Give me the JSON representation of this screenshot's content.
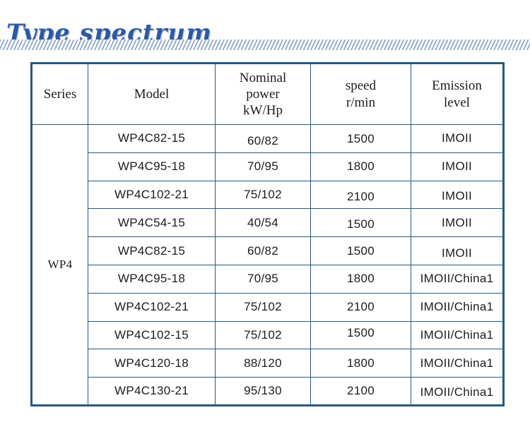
{
  "page": {
    "title": "Type spectrum"
  },
  "colors": {
    "title_blue": "#2b5aa5",
    "border_navy": "#27597f",
    "stripe_blue": "#8aa4c8"
  },
  "table": {
    "headers": {
      "series": "Series",
      "model": "Model",
      "power": "Nominal\npower\nkW/Hp",
      "speed": "speed\nr/min",
      "emission": "Emission\nlevel"
    },
    "series_label": "WP4",
    "rows": [
      {
        "model": "WP4C82-15",
        "power": "60/82",
        "speed": "1500",
        "emission": "IMOII"
      },
      {
        "model": "WP4C95-18",
        "power": "70/95",
        "speed": "1800",
        "emission": "IMOII"
      },
      {
        "model": "WP4C102-21",
        "power": "75/102",
        "speed": "2100",
        "emission": "IMOII"
      },
      {
        "model": "WP4C54-15",
        "power": "40/54",
        "speed": "1500",
        "emission": "IMOII"
      },
      {
        "model": "WP4C82-15",
        "power": "60/82",
        "speed": "1500",
        "emission": "IMOII"
      },
      {
        "model": "WP4C95-18",
        "power": "70/95",
        "speed": "1800",
        "emission": "IMOII/China1"
      },
      {
        "model": "WP4C102-21",
        "power": "75/102",
        "speed": "2100",
        "emission": "IMOII/China1"
      },
      {
        "model": "WP4C102-15",
        "power": "75/102",
        "speed": "1500",
        "emission": "IMOII/China1"
      },
      {
        "model": "WP4C120-18",
        "power": "88/120",
        "speed": "1800",
        "emission": "IMOII/China1"
      },
      {
        "model": "WP4C130-21",
        "power": "95/130",
        "speed": "2100",
        "emission": "IMOII/China1"
      }
    ]
  }
}
